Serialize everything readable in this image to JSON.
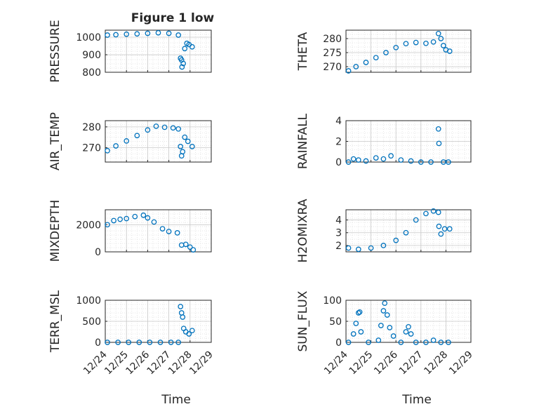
{
  "figure": {
    "title": "Figure 1 low",
    "xlabel": "Time"
  },
  "colors": {
    "marker": "#0072BD",
    "axis": "#262626",
    "grid": "#dcdcdc"
  },
  "chart_data": [
    {
      "type": "scatter",
      "ylabel": "PRESSURE",
      "yticks": [
        "800",
        "900",
        "1000"
      ],
      "ylim": [
        800,
        1040
      ],
      "xlim": [
        "12/24",
        "12/29"
      ],
      "xticks": [
        "12/24",
        "12/25",
        "12/26",
        "12/27",
        "12/28",
        "12/29"
      ],
      "points": [
        {
          "x": 24.1,
          "y": 1012
        },
        {
          "x": 24.5,
          "y": 1014
        },
        {
          "x": 25.0,
          "y": 1017
        },
        {
          "x": 25.5,
          "y": 1019
        },
        {
          "x": 26.0,
          "y": 1022
        },
        {
          "x": 26.5,
          "y": 1025
        },
        {
          "x": 27.0,
          "y": 1022
        },
        {
          "x": 27.45,
          "y": 1012
        },
        {
          "x": 27.55,
          "y": 880
        },
        {
          "x": 27.6,
          "y": 870
        },
        {
          "x": 27.62,
          "y": 830
        },
        {
          "x": 27.68,
          "y": 850
        },
        {
          "x": 27.75,
          "y": 935
        },
        {
          "x": 27.85,
          "y": 965
        },
        {
          "x": 27.95,
          "y": 958
        },
        {
          "x": 28.1,
          "y": 945
        }
      ]
    },
    {
      "type": "scatter",
      "ylabel": "THETA",
      "yticks": [
        "270",
        "275",
        "280"
      ],
      "ylim": [
        268,
        283
      ],
      "xlim": [
        "12/24",
        "12/29"
      ],
      "xticks": [
        "12/24",
        "12/25",
        "12/26",
        "12/27",
        "12/28",
        "12/29"
      ],
      "points": [
        {
          "x": 24.1,
          "y": 268.5
        },
        {
          "x": 24.4,
          "y": 270
        },
        {
          "x": 24.8,
          "y": 271.5
        },
        {
          "x": 25.2,
          "y": 273.2
        },
        {
          "x": 25.6,
          "y": 275
        },
        {
          "x": 26.0,
          "y": 276.8
        },
        {
          "x": 26.4,
          "y": 278.2
        },
        {
          "x": 26.8,
          "y": 278.6
        },
        {
          "x": 27.2,
          "y": 278.3
        },
        {
          "x": 27.5,
          "y": 278.8
        },
        {
          "x": 27.7,
          "y": 281.8
        },
        {
          "x": 27.8,
          "y": 280
        },
        {
          "x": 27.9,
          "y": 277.5
        },
        {
          "x": 28.0,
          "y": 276
        },
        {
          "x": 28.15,
          "y": 275.5
        }
      ]
    },
    {
      "type": "scatter",
      "ylabel": "AIR_TEMP",
      "yticks": [
        "270",
        "280"
      ],
      "ylim": [
        263,
        283
      ],
      "xlim": [
        "12/24",
        "12/29"
      ],
      "xticks": [
        "12/24",
        "12/25",
        "12/26",
        "12/27",
        "12/28",
        "12/29"
      ],
      "points": [
        {
          "x": 24.1,
          "y": 268.5
        },
        {
          "x": 24.5,
          "y": 270.8
        },
        {
          "x": 25.0,
          "y": 273.2
        },
        {
          "x": 25.5,
          "y": 275.8
        },
        {
          "x": 26.0,
          "y": 278.5
        },
        {
          "x": 26.4,
          "y": 280.3
        },
        {
          "x": 26.8,
          "y": 279.8
        },
        {
          "x": 27.2,
          "y": 279.5
        },
        {
          "x": 27.45,
          "y": 279
        },
        {
          "x": 27.55,
          "y": 270.5
        },
        {
          "x": 27.6,
          "y": 266
        },
        {
          "x": 27.65,
          "y": 268
        },
        {
          "x": 27.75,
          "y": 275
        },
        {
          "x": 27.9,
          "y": 273
        },
        {
          "x": 28.1,
          "y": 270.5
        }
      ]
    },
    {
      "type": "scatter",
      "ylabel": "RAINFALL",
      "yticks": [
        "0",
        "2",
        "4"
      ],
      "ylim": [
        0,
        4
      ],
      "xlim": [
        "12/24",
        "12/29"
      ],
      "xticks": [
        "12/24",
        "12/25",
        "12/26",
        "12/27",
        "12/28",
        "12/29"
      ],
      "points": [
        {
          "x": 24.1,
          "y": 0
        },
        {
          "x": 24.3,
          "y": 0.3
        },
        {
          "x": 24.5,
          "y": 0.2
        },
        {
          "x": 24.8,
          "y": 0.1
        },
        {
          "x": 25.2,
          "y": 0.4
        },
        {
          "x": 25.5,
          "y": 0.3
        },
        {
          "x": 25.8,
          "y": 0.6
        },
        {
          "x": 26.2,
          "y": 0.2
        },
        {
          "x": 26.6,
          "y": 0.1
        },
        {
          "x": 27.0,
          "y": 0
        },
        {
          "x": 27.4,
          "y": 0
        },
        {
          "x": 27.7,
          "y": 3.2
        },
        {
          "x": 27.72,
          "y": 1.8
        },
        {
          "x": 27.9,
          "y": 0
        },
        {
          "x": 28.1,
          "y": 0
        }
      ]
    },
    {
      "type": "scatter",
      "ylabel": "MIXDEPTH",
      "yticks": [
        "0",
        "2000"
      ],
      "ylim": [
        0,
        3100
      ],
      "xlim": [
        "12/24",
        "12/29"
      ],
      "xticks": [
        "12/24",
        "12/25",
        "12/26",
        "12/27",
        "12/28",
        "12/29"
      ],
      "points": [
        {
          "x": 24.1,
          "y": 2000
        },
        {
          "x": 24.4,
          "y": 2300
        },
        {
          "x": 24.7,
          "y": 2400
        },
        {
          "x": 25.0,
          "y": 2450
        },
        {
          "x": 25.4,
          "y": 2600
        },
        {
          "x": 25.8,
          "y": 2700
        },
        {
          "x": 26.0,
          "y": 2500
        },
        {
          "x": 26.3,
          "y": 2200
        },
        {
          "x": 26.7,
          "y": 1700
        },
        {
          "x": 27.0,
          "y": 1500
        },
        {
          "x": 27.4,
          "y": 1400
        },
        {
          "x": 27.6,
          "y": 500
        },
        {
          "x": 27.8,
          "y": 550
        },
        {
          "x": 28.0,
          "y": 350
        },
        {
          "x": 28.15,
          "y": 150
        }
      ]
    },
    {
      "type": "scatter",
      "ylabel": "H2OMIXRA",
      "yticks": [
        "2",
        "3",
        "4"
      ],
      "ylim": [
        1.5,
        4.8
      ],
      "xlim": [
        "12/24",
        "12/29"
      ],
      "xticks": [
        "12/24",
        "12/25",
        "12/26",
        "12/27",
        "12/28",
        "12/29"
      ],
      "points": [
        {
          "x": 24.1,
          "y": 1.8
        },
        {
          "x": 24.5,
          "y": 1.7
        },
        {
          "x": 25.0,
          "y": 1.8
        },
        {
          "x": 25.5,
          "y": 2.0
        },
        {
          "x": 26.0,
          "y": 2.4
        },
        {
          "x": 26.4,
          "y": 3.0
        },
        {
          "x": 26.8,
          "y": 4.0
        },
        {
          "x": 27.2,
          "y": 4.5
        },
        {
          "x": 27.5,
          "y": 4.7
        },
        {
          "x": 27.7,
          "y": 4.6
        },
        {
          "x": 27.72,
          "y": 3.5
        },
        {
          "x": 27.8,
          "y": 2.9
        },
        {
          "x": 27.95,
          "y": 3.3
        },
        {
          "x": 28.15,
          "y": 3.3
        }
      ]
    },
    {
      "type": "scatter",
      "ylabel": "TERR_MSL",
      "yticks": [
        "0",
        "500",
        "1000"
      ],
      "ylim": [
        0,
        1000
      ],
      "xlim": [
        "12/24",
        "12/29"
      ],
      "xticks": [
        "12/24",
        "12/25",
        "12/26",
        "12/27",
        "12/28",
        "12/29"
      ],
      "points": [
        {
          "x": 24.1,
          "y": 0
        },
        {
          "x": 24.6,
          "y": 0
        },
        {
          "x": 25.1,
          "y": 0
        },
        {
          "x": 25.6,
          "y": 0
        },
        {
          "x": 26.1,
          "y": 0
        },
        {
          "x": 26.6,
          "y": 0
        },
        {
          "x": 27.1,
          "y": 0
        },
        {
          "x": 27.45,
          "y": 0
        },
        {
          "x": 27.55,
          "y": 850
        },
        {
          "x": 27.6,
          "y": 700
        },
        {
          "x": 27.65,
          "y": 600
        },
        {
          "x": 27.7,
          "y": 330
        },
        {
          "x": 27.8,
          "y": 250
        },
        {
          "x": 27.95,
          "y": 200
        },
        {
          "x": 28.1,
          "y": 280
        }
      ]
    },
    {
      "type": "scatter",
      "ylabel": "SUN_FLUX",
      "yticks": [
        "0",
        "50",
        "100"
      ],
      "ylim": [
        0,
        100
      ],
      "xlim": [
        "12/24",
        "12/29"
      ],
      "xticks": [
        "12/24",
        "12/25",
        "12/26",
        "12/27",
        "12/28",
        "12/29"
      ],
      "points": [
        {
          "x": 24.1,
          "y": 0
        },
        {
          "x": 24.3,
          "y": 20
        },
        {
          "x": 24.4,
          "y": 45
        },
        {
          "x": 24.5,
          "y": 70
        },
        {
          "x": 24.55,
          "y": 72
        },
        {
          "x": 24.6,
          "y": 25
        },
        {
          "x": 24.9,
          "y": 0
        },
        {
          "x": 25.3,
          "y": 5
        },
        {
          "x": 25.4,
          "y": 40
        },
        {
          "x": 25.5,
          "y": 75
        },
        {
          "x": 25.55,
          "y": 93
        },
        {
          "x": 25.65,
          "y": 65
        },
        {
          "x": 25.75,
          "y": 35
        },
        {
          "x": 25.9,
          "y": 15
        },
        {
          "x": 26.2,
          "y": 0
        },
        {
          "x": 26.4,
          "y": 25
        },
        {
          "x": 26.5,
          "y": 37
        },
        {
          "x": 26.6,
          "y": 20
        },
        {
          "x": 26.8,
          "y": 0
        },
        {
          "x": 27.2,
          "y": 0
        },
        {
          "x": 27.5,
          "y": 5
        },
        {
          "x": 27.8,
          "y": 0
        },
        {
          "x": 28.1,
          "y": 0
        }
      ]
    }
  ]
}
